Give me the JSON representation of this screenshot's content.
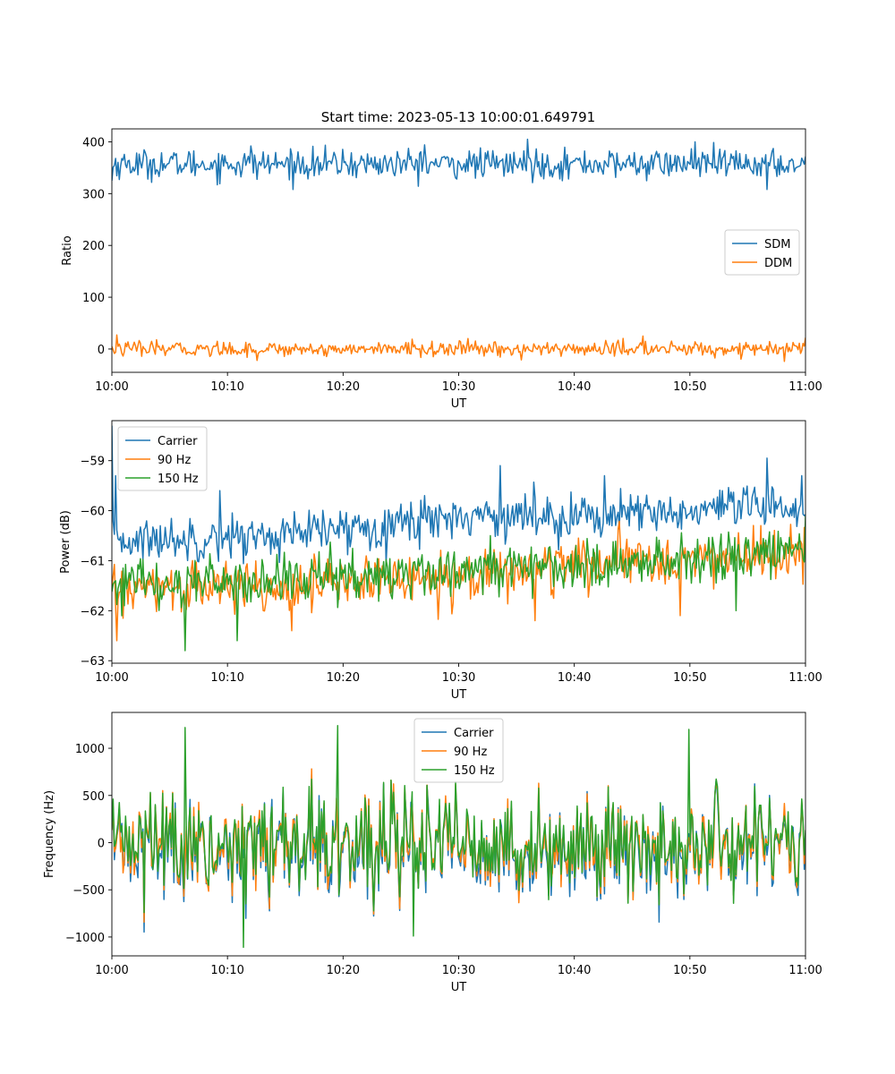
{
  "figure_title": "Start time: 2023-05-13 10:00:01.649791",
  "colors": {
    "blue": "#1f77b4",
    "orange": "#ff7f0e",
    "green": "#2ca02c"
  },
  "chart_data": [
    {
      "type": "line",
      "title": "Start time: 2023-05-13 10:00:01.649791",
      "xlabel": "UT",
      "ylabel": "Ratio",
      "xlim": [
        "10:00",
        "11:00"
      ],
      "xticks": [
        "10:00",
        "10:10",
        "10:20",
        "10:30",
        "10:40",
        "10:50",
        "11:00"
      ],
      "ylim": [
        -45,
        425
      ],
      "yticks": [
        0,
        100,
        200,
        300,
        400
      ],
      "ytick_labels": [
        "0",
        "100",
        "200",
        "300",
        "400"
      ],
      "legend_position": "center-right",
      "grid": false,
      "series": [
        {
          "name": "SDM",
          "color": "#1f77b4",
          "mean": 357,
          "noise": 14,
          "spikes": [
            [
              0.0,
              325
            ],
            [
              0.2,
              392
            ],
            [
              0.45,
              394
            ],
            [
              0.6,
              405
            ],
            [
              0.84,
              400
            ],
            [
              0.945,
              308
            ],
            [
              1.0,
              372
            ]
          ]
        },
        {
          "name": "DDM",
          "color": "#ff7f0e",
          "mean": 0,
          "noise": 7,
          "spikes": [
            [
              0.0,
              5
            ],
            [
              0.007,
              27
            ],
            [
              0.21,
              -22
            ],
            [
              0.59,
              -21
            ],
            [
              0.765,
              25
            ],
            [
              0.97,
              -24
            ],
            [
              1.0,
              22
            ]
          ]
        }
      ]
    },
    {
      "type": "line",
      "title": "",
      "xlabel": "UT",
      "ylabel": "Power (dB)",
      "xlim": [
        "10:00",
        "11:00"
      ],
      "xticks": [
        "10:00",
        "10:10",
        "10:20",
        "10:30",
        "10:40",
        "10:50",
        "11:00"
      ],
      "ylim": [
        -63.05,
        -58.2
      ],
      "yticks": [
        -63,
        -62,
        -61,
        -60,
        -59
      ],
      "ytick_labels": [
        "−63",
        "−62",
        "−61",
        "−60",
        "−59"
      ],
      "legend_position": "upper-left",
      "grid": false,
      "series": [
        {
          "name": "Carrier",
          "color": "#1f77b4",
          "trend": [
            [
              0,
              -60.6
            ],
            [
              0.25,
              -60.5
            ],
            [
              0.5,
              -60.1
            ],
            [
              0.75,
              -60.1
            ],
            [
              1.0,
              -59.9
            ]
          ],
          "noise": 0.22,
          "spikes": [
            [
              0.0,
              -58.3
            ],
            [
              0.005,
              -59.3
            ],
            [
              0.155,
              -59.6
            ],
            [
              0.45,
              -59.7
            ],
            [
              0.56,
              -59.1
            ],
            [
              0.71,
              -59.3
            ],
            [
              0.945,
              -58.95
            ],
            [
              0.995,
              -59.3
            ]
          ]
        },
        {
          "name": "90 Hz",
          "color": "#ff7f0e",
          "trend": [
            [
              0,
              -61.6
            ],
            [
              0.25,
              -61.5
            ],
            [
              0.5,
              -61.3
            ],
            [
              0.75,
              -61.0
            ],
            [
              1.0,
              -60.9
            ]
          ],
          "noise": 0.25,
          "spikes": [
            [
              0.007,
              -62.6
            ],
            [
              0.26,
              -62.4
            ],
            [
              0.61,
              -62.2
            ],
            [
              0.82,
              -62.1
            ],
            [
              0.935,
              -60.3
            ]
          ]
        },
        {
          "name": "150 Hz",
          "color": "#2ca02c",
          "trend": [
            [
              0,
              -61.5
            ],
            [
              0.25,
              -61.4
            ],
            [
              0.5,
              -61.2
            ],
            [
              0.75,
              -61.0
            ],
            [
              1.0,
              -60.8
            ]
          ],
          "noise": 0.25,
          "spikes": [
            [
              0.106,
              -62.8
            ],
            [
              0.18,
              -62.6
            ],
            [
              0.545,
              -60.5
            ],
            [
              0.9,
              -62.0
            ],
            [
              1.0,
              -60.1
            ]
          ]
        }
      ]
    },
    {
      "type": "line",
      "title": "",
      "xlabel": "UT",
      "ylabel": "Frequency (Hz)",
      "xlim": [
        "10:00",
        "11:00"
      ],
      "xticks": [
        "10:00",
        "10:10",
        "10:20",
        "10:30",
        "10:40",
        "10:50",
        "11:00"
      ],
      "ylim": [
        -1200,
        1380
      ],
      "yticks": [
        -1000,
        -500,
        0,
        500,
        1000
      ],
      "ytick_labels": [
        "−1000",
        "−500",
        "0",
        "500",
        "1000"
      ],
      "legend_position": "upper-center",
      "grid": false,
      "series": [
        {
          "name": "Carrier",
          "color": "#1f77b4",
          "mean": 0,
          "noise": 320,
          "offset": -60
        },
        {
          "name": "90 Hz",
          "color": "#ff7f0e",
          "mean": 0,
          "noise": 320,
          "offset": -25
        },
        {
          "name": "150 Hz",
          "color": "#2ca02c",
          "mean": 0,
          "noise": 320,
          "offset": 0,
          "spikes": [
            [
              0.106,
              1220
            ],
            [
              0.19,
              -1110
            ],
            [
              0.325,
              1240
            ],
            [
              0.435,
              -990
            ],
            [
              0.832,
              1200
            ]
          ]
        }
      ]
    }
  ]
}
